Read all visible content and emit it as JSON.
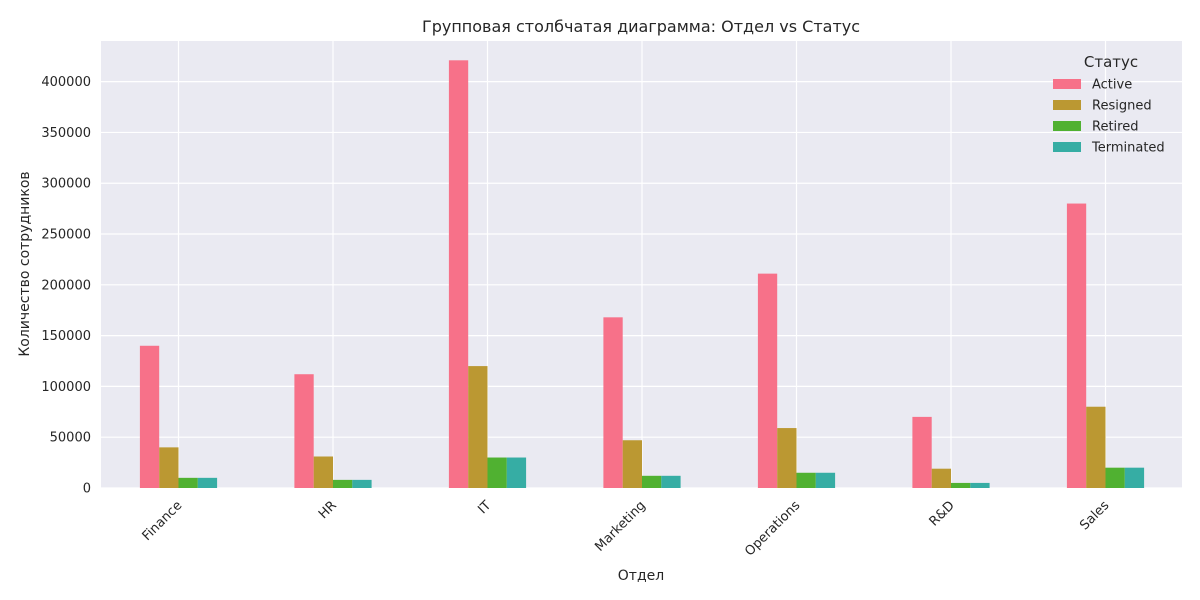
{
  "chart_data": {
    "type": "bar",
    "title": "Групповая столбчатая диаграмма: Отдел vs Статус",
    "xlabel": "Отдел",
    "ylabel": "Количество сотрудников",
    "ylim": [
      0,
      440000
    ],
    "yticks": [
      0,
      50000,
      100000,
      150000,
      200000,
      250000,
      300000,
      350000,
      400000
    ],
    "grid": true,
    "legend_title": "Статус",
    "legend_position": "top-right",
    "categories": [
      "Finance",
      "HR",
      "IT",
      "Marketing",
      "Operations",
      "R&D",
      "Sales"
    ],
    "series": [
      {
        "name": "Active",
        "color": "#f77189",
        "values": [
          140000,
          112000,
          421000,
          168000,
          211000,
          70000,
          280000
        ]
      },
      {
        "name": "Resigned",
        "color": "#bb9832",
        "values": [
          40000,
          31000,
          120000,
          47000,
          59000,
          19000,
          80000
        ]
      },
      {
        "name": "Retired",
        "color": "#50b131",
        "values": [
          10000,
          8000,
          30000,
          12000,
          15000,
          5000,
          20000
        ]
      },
      {
        "name": "Terminated",
        "color": "#36ada4",
        "values": [
          10000,
          8000,
          30000,
          12000,
          15000,
          5000,
          20000
        ]
      }
    ]
  }
}
